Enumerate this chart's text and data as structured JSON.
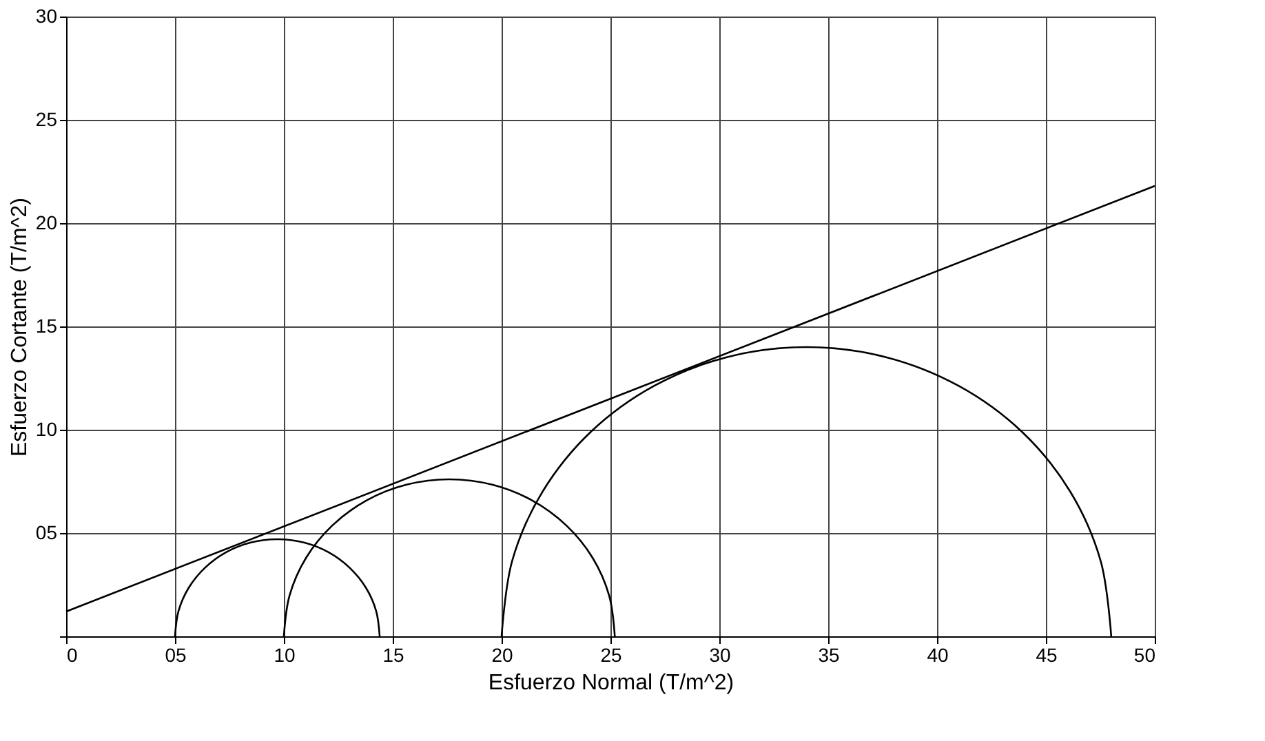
{
  "chart_data": {
    "type": "line",
    "xlabel": "Esfuerzo Normal (T/m^2)",
    "ylabel": "Esfuerzo Cortante (T/m^2)",
    "xlim": [
      0,
      50
    ],
    "ylim": [
      0,
      30
    ],
    "xticks": [
      0,
      {
        "value": 5,
        "label": "05"
      },
      10,
      15,
      20,
      25,
      30,
      35,
      40,
      45,
      50
    ],
    "yticks": [
      {
        "value": 0,
        "label": null
      },
      {
        "value": 5,
        "label": "05"
      },
      10,
      15,
      20,
      25,
      30
    ],
    "grid": true,
    "marker": "none",
    "line_style": "solid",
    "series": [
      {
        "color": "#000000",
        "x": [
          0,
          50
        ],
        "values": [
          1.2,
          21.8
        ]
      },
      {
        "color": "#000000",
        "x": [
          14.4,
          14.24,
          13.77,
          13.02,
          12.05,
          10.92,
          9.7,
          8.48,
          7.35,
          6.38,
          5.63,
          5.16,
          5.0
        ],
        "values": [
          0,
          1.22,
          2.35,
          3.32,
          4.07,
          4.54,
          4.7,
          4.54,
          4.07,
          3.32,
          2.35,
          1.22,
          0
        ]
      },
      {
        "color": "#000000",
        "x": [
          25.2,
          24.94,
          24.18,
          22.97,
          21.4,
          19.57,
          17.6,
          15.63,
          13.8,
          12.23,
          11.02,
          10.26,
          10.0
        ],
        "values": [
          0,
          1.97,
          3.8,
          5.37,
          6.58,
          7.34,
          7.6,
          7.34,
          6.58,
          5.37,
          3.8,
          1.97,
          0
        ]
      },
      {
        "color": "#000000",
        "x": [
          48,
          47.52,
          46.12,
          43.9,
          41,
          37.63,
          34,
          30.37,
          27,
          24.1,
          21.88,
          20.48,
          20
        ],
        "values": [
          0,
          3.63,
          7,
          9.9,
          12.12,
          13.52,
          14,
          13.52,
          12.12,
          9.9,
          7,
          3.63,
          0
        ]
      }
    ]
  }
}
